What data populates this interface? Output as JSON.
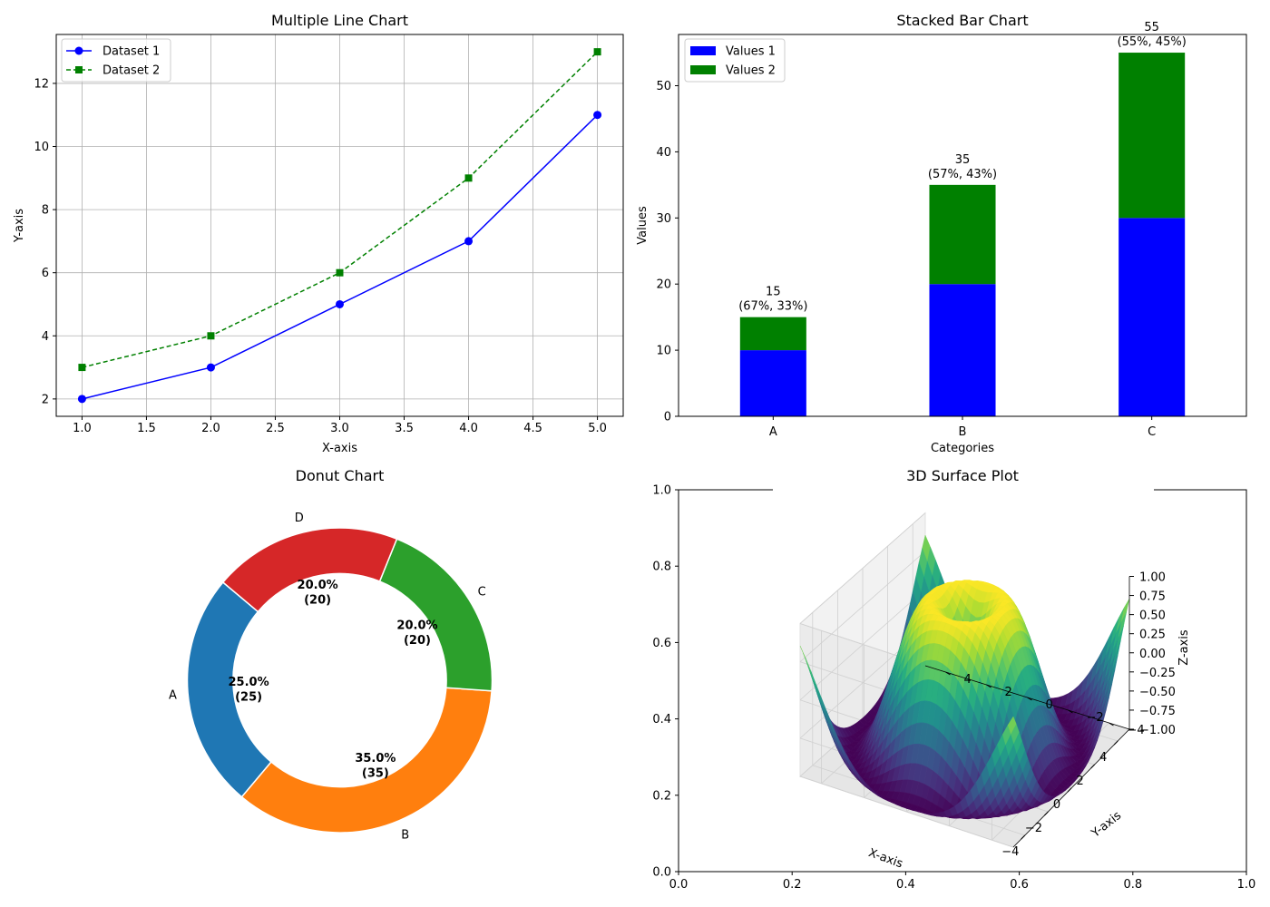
{
  "chart_data": [
    {
      "type": "line",
      "title": "Multiple Line Chart",
      "xlabel": "X-axis",
      "ylabel": "Y-axis",
      "x": [
        1,
        2,
        3,
        4,
        5
      ],
      "xlim": [
        0.8,
        5.2
      ],
      "ylim": [
        1.45,
        13.55
      ],
      "xticks": [
        "1.0",
        "1.5",
        "2.0",
        "2.5",
        "3.0",
        "3.5",
        "4.0",
        "4.5",
        "5.0"
      ],
      "yticks": [
        "2",
        "4",
        "6",
        "8",
        "10",
        "12"
      ],
      "grid": true,
      "legend_position": "top-left",
      "series": [
        {
          "name": "Dataset 1",
          "values": [
            2,
            3,
            5,
            7,
            11
          ],
          "color": "#0000ff",
          "marker": "circle",
          "linestyle": "solid"
        },
        {
          "name": "Dataset 2",
          "values": [
            3,
            4,
            6,
            9,
            13
          ],
          "color": "#008000",
          "marker": "square",
          "linestyle": "dashed"
        }
      ]
    },
    {
      "type": "bar",
      "stacked": true,
      "title": "Stacked Bar Chart",
      "xlabel": "Categories",
      "ylabel": "Values",
      "categories": [
        "A",
        "B",
        "C"
      ],
      "ylim": [
        0,
        57.75
      ],
      "yticks": [
        "0",
        "10",
        "20",
        "30",
        "40",
        "50"
      ],
      "legend_position": "top-left",
      "series": [
        {
          "name": "Values 1",
          "values": [
            10,
            20,
            30
          ],
          "color": "#0000ff"
        },
        {
          "name": "Values 2",
          "values": [
            5,
            15,
            25
          ],
          "color": "#008000"
        }
      ],
      "totals": [
        "15",
        "35",
        "55"
      ],
      "share_labels": [
        "(67%, 33%)",
        "(57%, 43%)",
        "(55%, 45%)"
      ]
    },
    {
      "type": "pie",
      "donut": true,
      "title": "Donut Chart",
      "start_angle_deg": 140,
      "slices": [
        {
          "label": "A",
          "value": 25,
          "pct_label": "25.0%",
          "count_label": "(25)",
          "color": "#1f77b4"
        },
        {
          "label": "B",
          "value": 35,
          "pct_label": "35.0%",
          "count_label": "(35)",
          "color": "#ff7f0e"
        },
        {
          "label": "C",
          "value": 20,
          "pct_label": "20.0%",
          "count_label": "(20)",
          "color": "#2ca02c"
        },
        {
          "label": "D",
          "value": 20,
          "pct_label": "20.0%",
          "count_label": "(20)",
          "color": "#d62728"
        }
      ]
    },
    {
      "type": "surface",
      "title": "3D Surface Plot",
      "function": "sin(sqrt(x^2 + y^2))",
      "xlabel": "X-axis",
      "ylabel": "Y-axis",
      "zlabel": "Z-axis",
      "xlim": [
        -5,
        5
      ],
      "ylim": [
        -5,
        5
      ],
      "zlim": [
        -1,
        1
      ],
      "xticks": [
        "−4",
        "−2",
        "0",
        "2",
        "4"
      ],
      "yticks": [
        "−4",
        "−2",
        "0",
        "2",
        "4"
      ],
      "zticks": [
        "−1.00",
        "−0.75",
        "−0.50",
        "−0.25",
        "0.00",
        "0.25",
        "0.50",
        "0.75",
        "1.00"
      ],
      "colormap": "viridis",
      "frame_xticks": [
        "0.0",
        "0.2",
        "0.4",
        "0.6",
        "0.8",
        "1.0"
      ],
      "frame_yticks": [
        "0.0",
        "0.2",
        "0.4",
        "0.6",
        "0.8",
        "1.0"
      ]
    }
  ]
}
